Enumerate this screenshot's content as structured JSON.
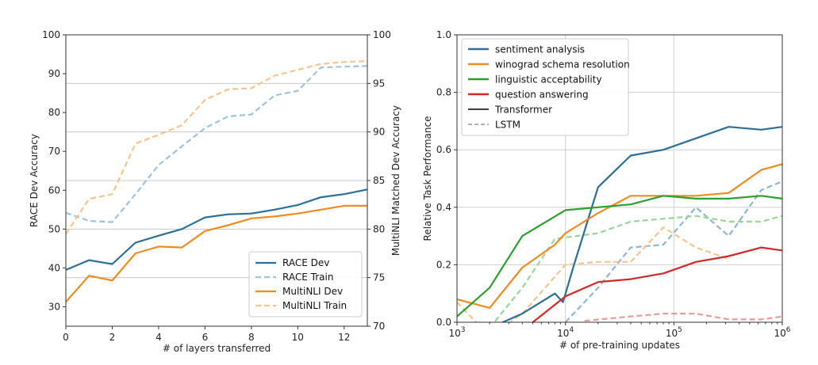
{
  "chart_data": [
    {
      "type": "line",
      "xlabel": "# of layers transferred",
      "ylabel_left": "RACE Dev Accuracy",
      "ylabel_right": "MultiNLI Matched Dev Accuracy",
      "xlim": [
        0,
        13
      ],
      "ylim_left": [
        25,
        100
      ],
      "ylim_right": [
        70,
        100
      ],
      "xticks": [
        0,
        2,
        4,
        6,
        8,
        10,
        12
      ],
      "yticks_left": [
        30,
        40,
        50,
        60,
        70,
        80,
        90,
        100
      ],
      "yticks_right": [
        70,
        75,
        80,
        85,
        90,
        95,
        100
      ],
      "grid": "horizontal",
      "legend_position": "lower-right",
      "x": [
        0,
        1,
        2,
        3,
        4,
        5,
        6,
        7,
        8,
        9,
        10,
        11,
        12,
        13
      ],
      "series": [
        {
          "name": "RACE Dev",
          "axis": "left",
          "style": "solid",
          "color": "#2a6f97",
          "values": [
            39.5,
            42,
            41,
            46.5,
            48.3,
            50,
            53,
            53.8,
            54,
            55,
            56.2,
            58.2,
            59,
            60.2
          ]
        },
        {
          "name": "RACE Train",
          "axis": "left",
          "style": "dashed",
          "color": "#9ec3de",
          "values": [
            54.2,
            52.1,
            51.8,
            59,
            66.5,
            71.3,
            76,
            79,
            79.5,
            84.4,
            85.6,
            91.6,
            91.8,
            92
          ]
        },
        {
          "name": "MultiNLI Dev",
          "axis": "right",
          "style": "solid",
          "color": "#f28a1f",
          "values": [
            72.5,
            75.2,
            74.7,
            77.5,
            78.2,
            78.1,
            79.8,
            80.4,
            81.1,
            81.3,
            81.6,
            82.0,
            82.4,
            82.4
          ]
        },
        {
          "name": "MultiNLI Train",
          "axis": "right",
          "style": "dashed",
          "color": "#f6c48e",
          "values": [
            79.5,
            83.1,
            83.6,
            88.8,
            89.7,
            90.7,
            93.3,
            94.4,
            94.5,
            95.8,
            96.4,
            97.0,
            97.2,
            97.3
          ]
        }
      ]
    },
    {
      "type": "line",
      "xlabel": "# of pre-training updates",
      "ylabel": "Relative Task Performance",
      "xscale": "log",
      "xlim": [
        1000,
        1000000
      ],
      "ylim": [
        0.0,
        1.0
      ],
      "xticks": [
        1000,
        10000,
        100000,
        1000000
      ],
      "xtick_labels": [
        {
          "base": "10",
          "exp": "3"
        },
        {
          "base": "10",
          "exp": "4"
        },
        {
          "base": "10",
          "exp": "5"
        },
        {
          "base": "10",
          "exp": "6"
        }
      ],
      "yticks": [
        "0.0",
        "0.2",
        "0.4",
        "0.6",
        "0.8",
        "1.0"
      ],
      "grid": "both",
      "legend_position": "upper-left",
      "series": [
        {
          "name": "sentiment analysis",
          "model": "Transformer",
          "color": "#2a6f97",
          "style": "solid",
          "x": [
            1000,
            2000,
            4000,
            8000,
            9500,
            12000,
            20000,
            40000,
            80000,
            160000,
            320000,
            640000,
            1000000
          ],
          "values": [
            -0.05,
            -0.02,
            0.03,
            0.1,
            0.07,
            0.2,
            0.47,
            0.58,
            0.6,
            0.64,
            0.68,
            0.67,
            0.68
          ]
        },
        {
          "name": "winograd schema resolution",
          "model": "Transformer",
          "color": "#f28a1f",
          "style": "solid",
          "x": [
            1000,
            2000,
            4000,
            8000,
            10000,
            20000,
            40000,
            80000,
            160000,
            320000,
            640000,
            1000000
          ],
          "values": [
            0.08,
            0.05,
            0.19,
            0.27,
            0.31,
            0.38,
            0.44,
            0.44,
            0.44,
            0.45,
            0.53,
            0.55
          ]
        },
        {
          "name": "linguistic acceptability",
          "model": "Transformer",
          "color": "#2ca02c",
          "style": "solid",
          "x": [
            1000,
            2000,
            4000,
            10000,
            20000,
            40000,
            80000,
            160000,
            320000,
            640000,
            1000000
          ],
          "values": [
            0.02,
            0.12,
            0.3,
            0.39,
            0.4,
            0.41,
            0.44,
            0.43,
            0.43,
            0.44,
            0.43
          ]
        },
        {
          "name": "question answering",
          "model": "Transformer",
          "color": "#d62728",
          "style": "solid",
          "x": [
            5000,
            10000,
            20000,
            40000,
            80000,
            160000,
            320000,
            640000,
            1000000
          ],
          "values": [
            0.0,
            0.09,
            0.14,
            0.15,
            0.17,
            0.21,
            0.23,
            0.26,
            0.25
          ]
        },
        {
          "name": "sentiment analysis",
          "model": "LSTM",
          "color": "#8cb6d4",
          "style": "dashed",
          "x": [
            10000,
            20000,
            40000,
            80000,
            160000,
            320000,
            640000,
            1000000
          ],
          "values": [
            0.0,
            0.12,
            0.26,
            0.27,
            0.4,
            0.3,
            0.46,
            0.49
          ]
        },
        {
          "name": "winograd schema resolution",
          "model": "LSTM",
          "color": "#f6c48e",
          "style": "dashed",
          "x": [
            1000,
            2000,
            4000,
            10000,
            20000,
            40000,
            80000,
            160000,
            320000
          ],
          "values": [
            0.07,
            -0.05,
            0.03,
            0.2,
            0.21,
            0.21,
            0.33,
            0.26,
            0.22
          ]
        },
        {
          "name": "linguistic acceptability",
          "model": "LSTM",
          "color": "#98d698",
          "style": "dashed",
          "x": [
            2000,
            4000,
            8000,
            20000,
            40000,
            80000,
            160000,
            320000,
            640000,
            1000000
          ],
          "values": [
            -0.02,
            0.12,
            0.29,
            0.31,
            0.35,
            0.36,
            0.37,
            0.35,
            0.35,
            0.37
          ]
        },
        {
          "name": "question answering",
          "model": "LSTM",
          "color": "#e99a9a",
          "style": "dashed",
          "x": [
            15000,
            40000,
            80000,
            160000,
            320000,
            640000,
            1000000
          ],
          "values": [
            0.005,
            0.02,
            0.03,
            0.03,
            0.01,
            0.01,
            0.02
          ]
        }
      ],
      "legend": [
        {
          "label": "sentiment analysis",
          "color": "#2a6f97",
          "style": "solid"
        },
        {
          "label": "winograd schema resolution",
          "color": "#f28a1f",
          "style": "solid"
        },
        {
          "label": "linguistic acceptability",
          "color": "#2ca02c",
          "style": "solid"
        },
        {
          "label": "question answering",
          "color": "#d62728",
          "style": "solid"
        },
        {
          "label": "Transformer",
          "color": "#000000",
          "style": "solid"
        },
        {
          "label": "LSTM",
          "color": "#999999",
          "style": "dashed"
        }
      ]
    }
  ]
}
